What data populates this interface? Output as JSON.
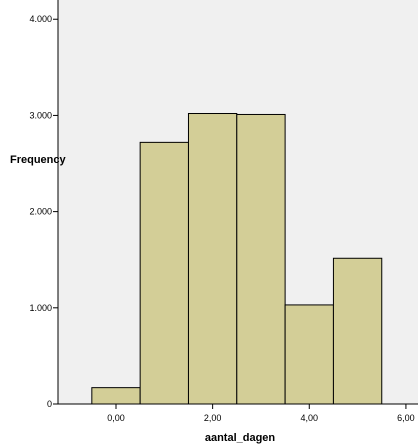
{
  "chart_data": {
    "type": "bar",
    "xlabel": "aantal_dagen",
    "ylabel": "Frequency",
    "bins": [
      {
        "from": -0.5,
        "to": 0.5,
        "value": 170
      },
      {
        "from": 0.5,
        "to": 1.5,
        "value": 2720
      },
      {
        "from": 1.5,
        "to": 2.5,
        "value": 3020
      },
      {
        "from": 2.5,
        "to": 3.5,
        "value": 3010
      },
      {
        "from": 3.5,
        "to": 4.5,
        "value": 1030
      },
      {
        "from": 4.5,
        "to": 5.5,
        "value": 1515
      }
    ],
    "xlim": [
      -1.2,
      6.25
    ],
    "ylim": [
      0,
      4200
    ],
    "x_ticks": [
      {
        "value": 0,
        "label": "0,00"
      },
      {
        "value": 2,
        "label": "2,00"
      },
      {
        "value": 4,
        "label": "4,00"
      },
      {
        "value": 6,
        "label": "6,00"
      }
    ],
    "y_ticks": [
      {
        "value": 0,
        "label": "0"
      },
      {
        "value": 1000,
        "label": "1.000"
      },
      {
        "value": 2000,
        "label": "2.000"
      },
      {
        "value": 3000,
        "label": "3.000"
      },
      {
        "value": 4000,
        "label": "4.000"
      }
    ],
    "grid": false,
    "colors": {
      "plot_background": "#f0f0f0",
      "bar_fill": "#d3ce97",
      "bar_stroke": "#000000"
    }
  }
}
